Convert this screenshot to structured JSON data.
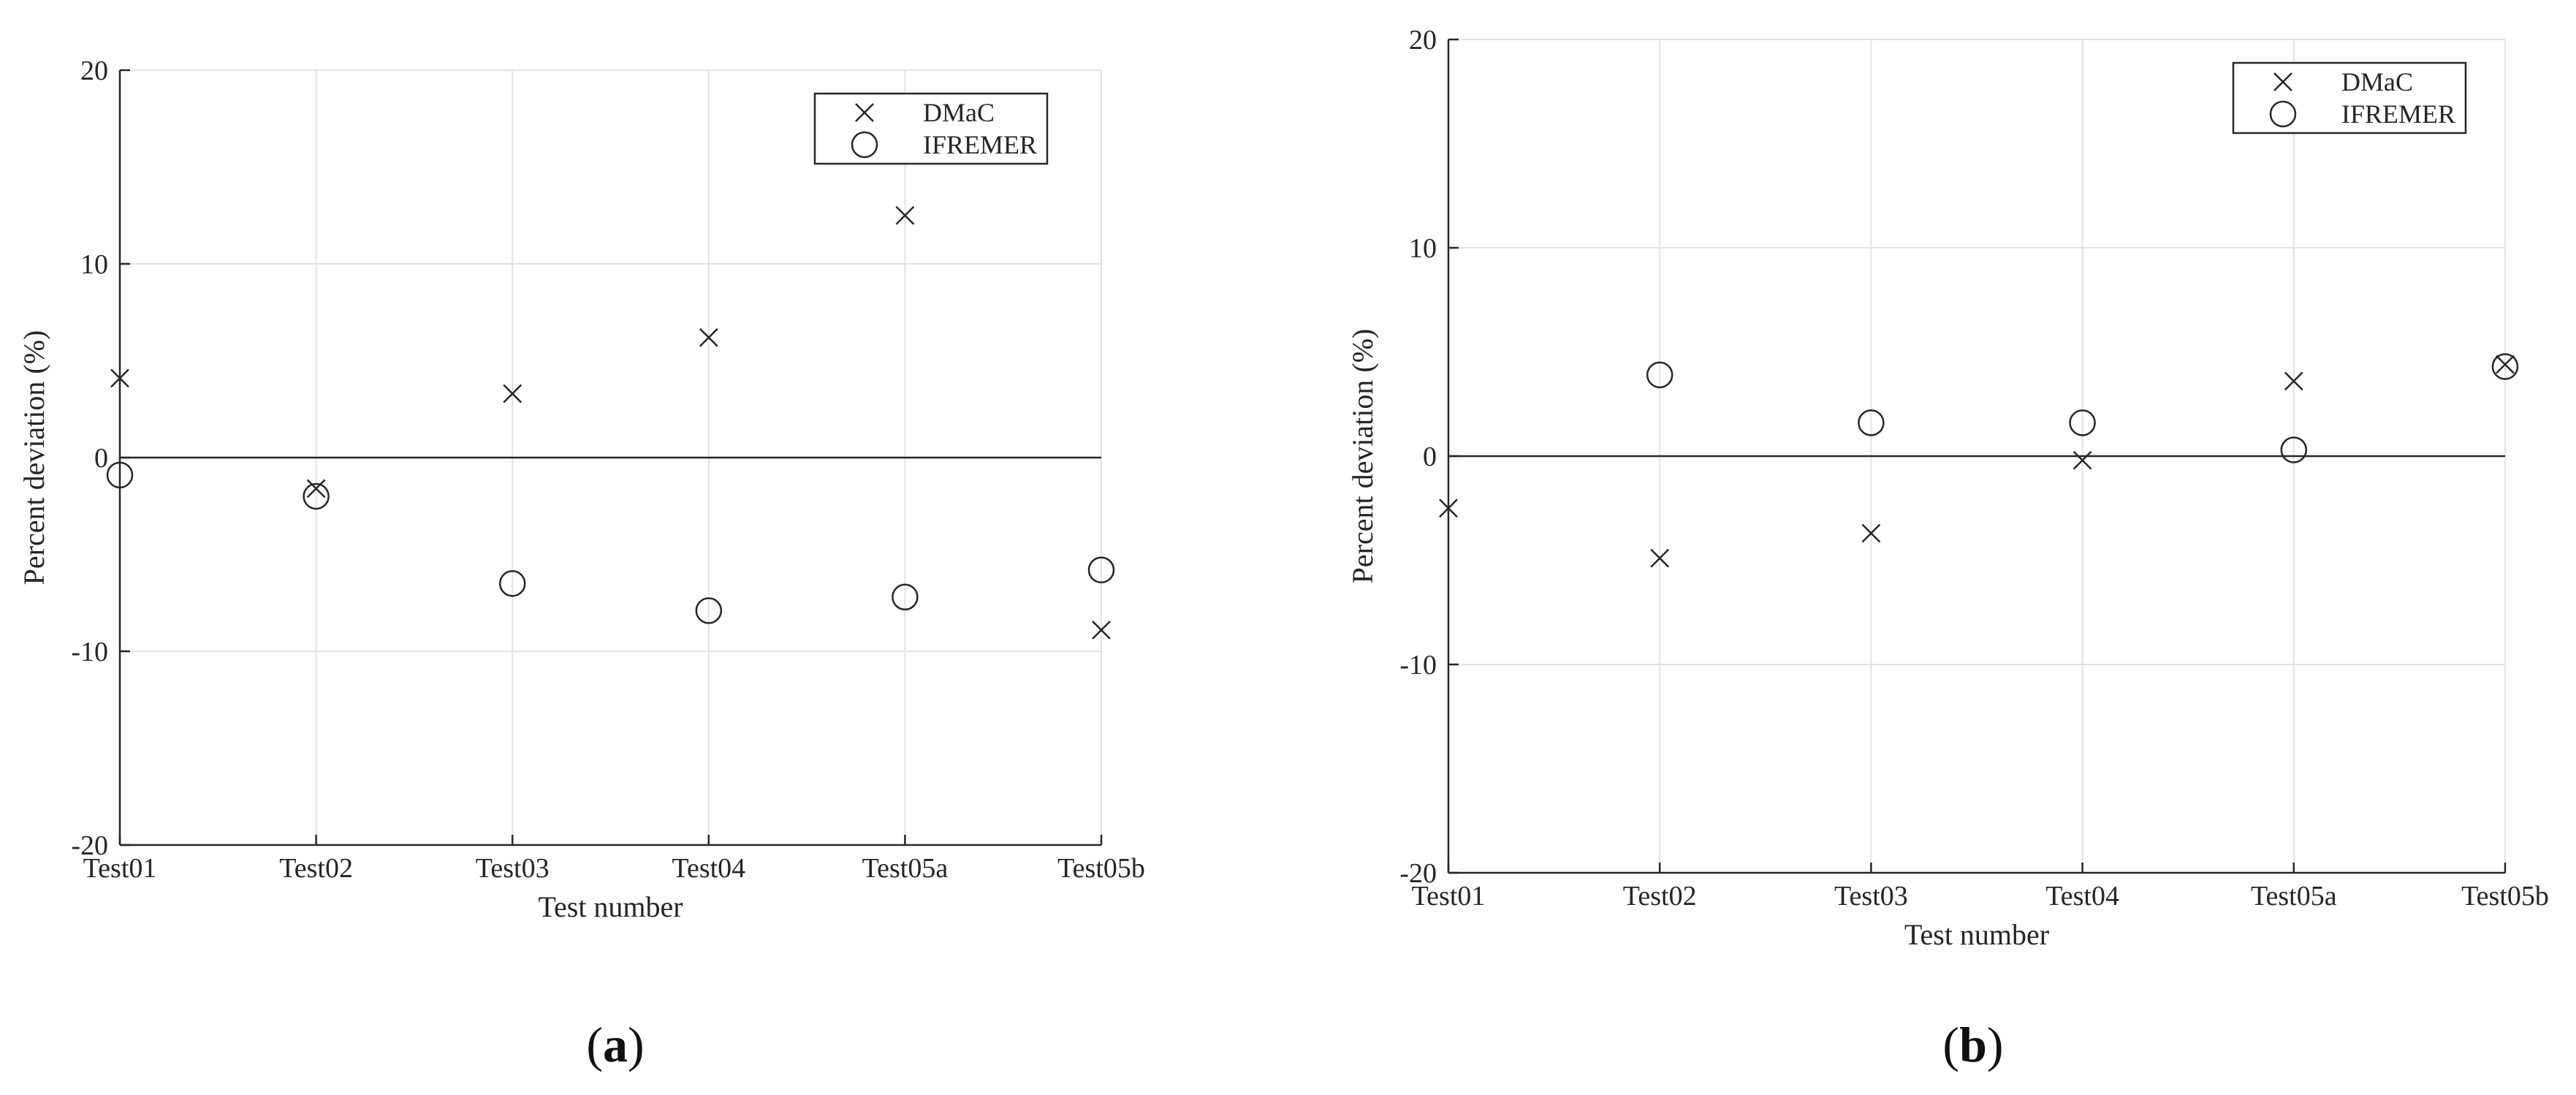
{
  "chart_data": [
    {
      "type": "scatter",
      "panel": "a",
      "caption": {
        "open": "(",
        "letter": "a",
        "close": ")"
      },
      "xlabel": "Test number",
      "ylabel": "Percent deviation (%)",
      "categories": [
        "Test01",
        "Test02",
        "Test03",
        "Test04",
        "Test05a",
        "Test05b"
      ],
      "ylim": [
        -20,
        20
      ],
      "yticks": [
        -20,
        -10,
        0,
        10,
        20
      ],
      "grid": true,
      "zero_line": true,
      "legend_position": "top-right",
      "series": [
        {
          "name": "DMaC",
          "marker": "x",
          "values": [
            4.1,
            -1.6,
            3.3,
            6.2,
            12.5,
            -8.9
          ]
        },
        {
          "name": "IFREMER",
          "marker": "o",
          "values": [
            -0.9,
            -2.0,
            -6.5,
            -7.9,
            -7.2,
            -5.8
          ]
        }
      ]
    },
    {
      "type": "scatter",
      "panel": "b",
      "caption": {
        "open": "(",
        "letter": "b",
        "close": ")"
      },
      "xlabel": "Test number",
      "ylabel": "Percent deviation (%)",
      "categories": [
        "Test01",
        "Test02",
        "Test03",
        "Test04",
        "Test05a",
        "Test05b"
      ],
      "ylim": [
        -20,
        20
      ],
      "yticks": [
        -20,
        -10,
        0,
        10,
        20
      ],
      "grid": true,
      "zero_line": true,
      "legend_position": "top-right",
      "series": [
        {
          "name": "DMaC",
          "marker": "x",
          "values": [
            -2.5,
            -4.9,
            -3.7,
            -0.2,
            3.6,
            4.4
          ]
        },
        {
          "name": "IFREMER",
          "marker": "o",
          "values": [
            null,
            3.9,
            1.6,
            1.6,
            0.3,
            4.3
          ]
        }
      ]
    }
  ],
  "colors": {
    "axis": "#262626",
    "grid": "#e3e3e3",
    "marker": "#262626"
  }
}
